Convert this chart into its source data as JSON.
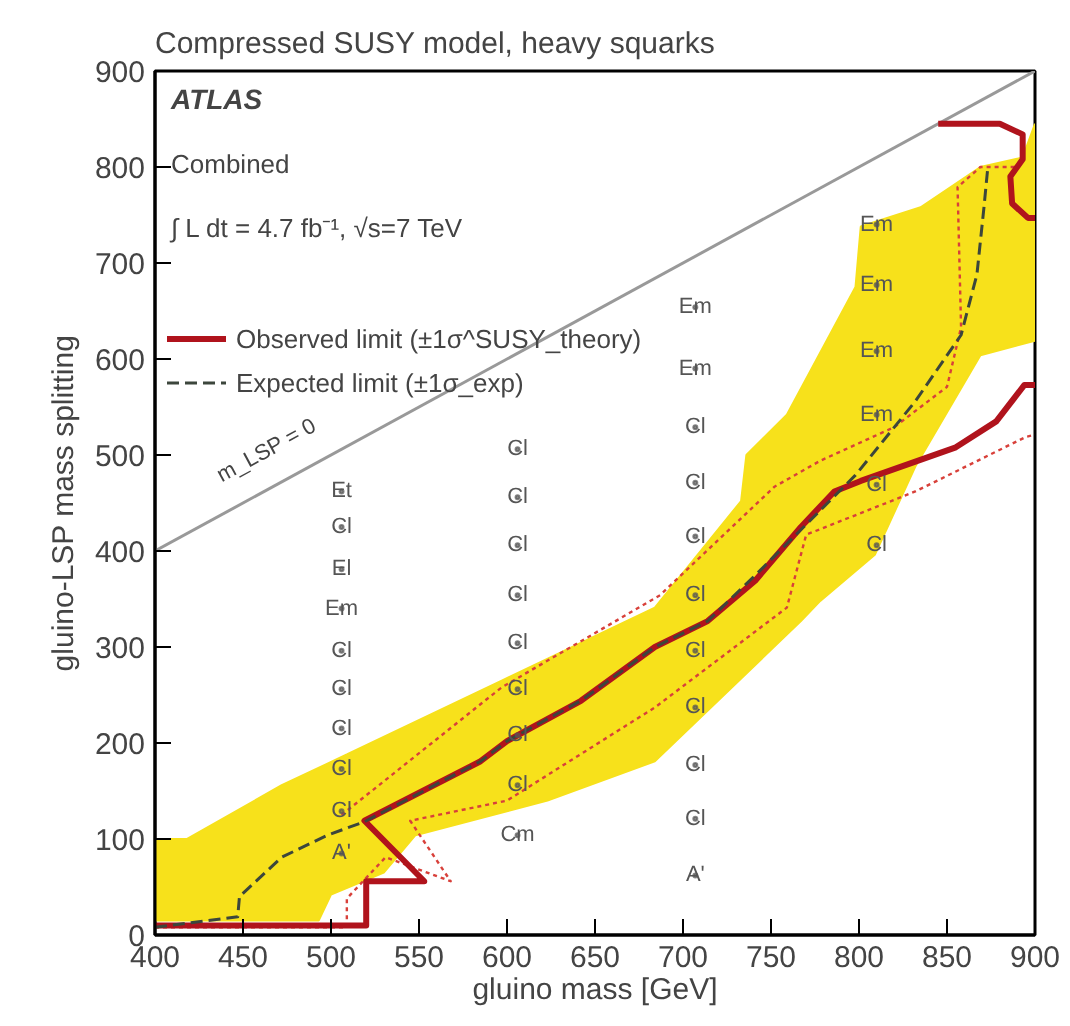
{
  "chart_data": {
    "type": "line",
    "title": "Compressed SUSY model, heavy squarks",
    "xlabel": "gluino mass [GeV]",
    "ylabel": "gluino-LSP mass splitting",
    "xlim": [
      400,
      900
    ],
    "ylim": [
      0,
      900
    ],
    "xticks": [
      400,
      450,
      500,
      550,
      600,
      650,
      700,
      750,
      800,
      850,
      900
    ],
    "yticks": [
      0,
      100,
      200,
      300,
      400,
      500,
      600,
      700,
      800,
      900
    ],
    "grid": false,
    "legend": "top left",
    "marker": "none",
    "series": [
      {
        "type": "area",
        "color": "#f7e11b",
        "x": [
          400,
          418,
          472,
          509,
          597,
          684,
          733,
          736,
          759,
          798,
          801,
          835,
          869,
          893,
          900,
          900,
          869,
          832,
          809,
          778,
          767,
          684,
          623,
          548,
          530,
          500,
          493,
          400
        ],
        "values": [
          100,
          100,
          156,
          188,
          265,
          341,
          452,
          500,
          542,
          675,
          738,
          758,
          800,
          810,
          845,
          619,
          604,
          488,
          396,
          348,
          327,
          181,
          140,
          104,
          65,
          42,
          15,
          15
        ]
      },
      {
        "color": "#999999",
        "line_style": "solid",
        "x": [
          400,
          900
        ],
        "values": [
          400,
          900
        ]
      },
      {
        "color": "#d8403a",
        "line_style": "dotted",
        "x": [
          506,
          597,
          687,
          752,
          778,
          820,
          850,
          858,
          856,
          869,
          889
        ],
        "values": [
          125,
          258,
          354,
          467,
          494,
          529,
          571,
          633,
          779,
          800,
          800
        ]
      },
      {
        "color": "#d8403a",
        "line_style": "dotted",
        "x": [
          400,
          509,
          509,
          531,
          568,
          545,
          600,
          684,
          759,
          770,
          832,
          895,
          900
        ],
        "values": [
          8,
          8,
          38,
          81,
          56,
          119,
          140,
          237,
          341,
          417,
          462,
          519,
          521
        ]
      },
      {
        "name": "Observed limit (±1σ^SUSY_theory)",
        "color": "#b0131c",
        "line_style": "solid",
        "x": [
          400,
          520,
          520,
          553,
          519,
          585,
          600,
          642,
          684,
          714,
          741,
          767,
          786,
          801,
          855,
          878,
          894,
          900
        ],
        "values": [
          10,
          10,
          56,
          56,
          119,
          181,
          202,
          244,
          300,
          327,
          369,
          425,
          462,
          473,
          508,
          535,
          573,
          573
        ]
      },
      {
        "color": "#b0131c",
        "line_style": "solid",
        "x": [
          845,
          880,
          893,
          893,
          886,
          887,
          896,
          900
        ],
        "values": [
          845,
          845,
          834,
          808,
          790,
          762,
          747,
          747
        ]
      },
      {
        "name": "Expected limit (±1σ_exp)",
        "color": "#3c463c",
        "line_style": "dashed",
        "x": [
          400,
          447,
          448,
          472,
          498,
          519,
          585,
          600,
          642,
          684,
          714,
          744,
          798,
          832,
          858,
          867,
          871,
          873
        ],
        "values": [
          8,
          19,
          40,
          81,
          104,
          118,
          181,
          202,
          244,
          300,
          327,
          380,
          479,
          556,
          625,
          688,
          758,
          796
        ]
      },
      {
        "type": "scatter",
        "color": "#555555",
        "x": [
          506,
          506,
          506,
          506,
          506,
          506,
          506,
          506,
          506,
          506,
          606,
          606,
          606,
          606,
          606,
          606,
          606,
          606,
          606,
          707,
          707,
          707,
          707,
          707,
          707,
          707,
          707,
          707,
          707,
          707,
          810,
          810,
          810,
          810,
          810,
          810
        ],
        "values": [
          462,
          425,
          381,
          340,
          296,
          256,
          215,
          173,
          129,
          85,
          506,
          456,
          406,
          354,
          304,
          256,
          208,
          156,
          104,
          654,
          590,
          529,
          471,
          415,
          354,
          296,
          237,
          177,
          121,
          62,
          740,
          677,
          608,
          542,
          469,
          406
        ],
        "value_labels": [
          "Et",
          "Cl",
          "El",
          "Em",
          "Cl",
          "Cl",
          "Cl",
          "Cl",
          "Cl",
          "A'",
          "Cl",
          "Cl",
          "Cl",
          "Cl",
          "Cl",
          "Cl",
          "Cl",
          "Cl",
          "Cm",
          "Em",
          "Em",
          "Cl",
          "Cl",
          "Cl",
          "Cl",
          "Cl",
          "Cl",
          "Cl",
          "Cl",
          "A'",
          "Em",
          "Em",
          "Em",
          "Em",
          "Cl",
          "Cl"
        ]
      }
    ],
    "annotations": [
      "ATLAS",
      "Combined",
      "∫ L dt = 4.7 fb⁻¹, √s=7 TeV",
      "m_LSP = 0"
    ]
  }
}
